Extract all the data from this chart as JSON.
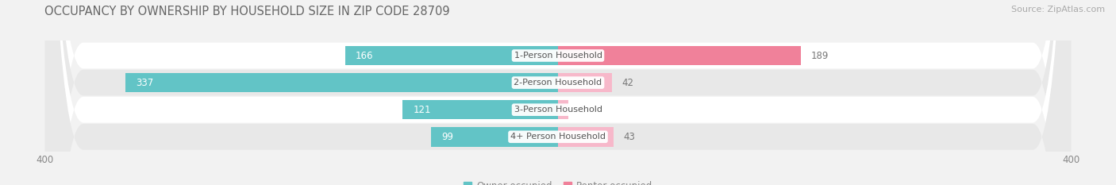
{
  "title": "OCCUPANCY BY OWNERSHIP BY HOUSEHOLD SIZE IN ZIP CODE 28709",
  "source": "Source: ZipAtlas.com",
  "categories": [
    "1-Person Household",
    "2-Person Household",
    "3-Person Household",
    "4+ Person Household"
  ],
  "owner_values": [
    166,
    337,
    121,
    99
  ],
  "renter_values": [
    189,
    42,
    8,
    43
  ],
  "owner_color": "#62c4c6",
  "renter_color": "#f0819a",
  "renter_color_light": "#f7b8ca",
  "axis_limit": 400,
  "bg_color": "#f2f2f2",
  "row_bg_light": "#ffffff",
  "row_bg_dark": "#e8e8e8",
  "bar_height": 0.72,
  "title_fontsize": 10.5,
  "source_fontsize": 8,
  "value_fontsize": 8.5,
  "category_fontsize": 8,
  "axis_label_fontsize": 8.5,
  "legend_fontsize": 8.5
}
